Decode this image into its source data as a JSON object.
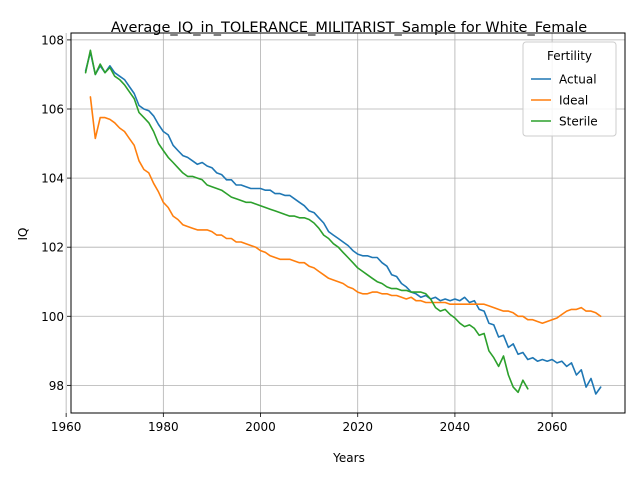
{
  "chart_data": {
    "type": "line",
    "title": "Average_IQ_in_TOLERANCE_MILITARIST_Sample for White_Female",
    "xlabel": "Years",
    "ylabel": "IQ",
    "xlim": [
      1961,
      2075
    ],
    "ylim": [
      97.2,
      108.2
    ],
    "xticks": [
      1960,
      1980,
      2000,
      2020,
      2040,
      2060
    ],
    "yticks": [
      98,
      100,
      102,
      104,
      106,
      108
    ],
    "grid": true,
    "legend": {
      "title": "Fertility",
      "placement": "top-right"
    },
    "series": [
      {
        "name": "Actual",
        "color": "#1f77b4",
        "x": [
          1964,
          1965,
          1966,
          1967,
          1968,
          1969,
          1970,
          1971,
          1972,
          1973,
          1974,
          1975,
          1976,
          1977,
          1978,
          1979,
          1980,
          1981,
          1982,
          1983,
          1984,
          1985,
          1986,
          1987,
          1988,
          1989,
          1990,
          1991,
          1992,
          1993,
          1994,
          1995,
          1996,
          1997,
          1998,
          1999,
          2000,
          2001,
          2002,
          2003,
          2004,
          2005,
          2006,
          2007,
          2008,
          2009,
          2010,
          2011,
          2012,
          2013,
          2014,
          2015,
          2016,
          2017,
          2018,
          2019,
          2020,
          2021,
          2022,
          2023,
          2024,
          2025,
          2026,
          2027,
          2028,
          2029,
          2030,
          2031,
          2032,
          2033,
          2034,
          2035,
          2036,
          2037,
          2038,
          2039,
          2040,
          2041,
          2042,
          2043,
          2044,
          2045,
          2046,
          2047,
          2048,
          2049,
          2050,
          2051,
          2052,
          2053,
          2054,
          2055,
          2056,
          2057,
          2058,
          2059,
          2060,
          2061,
          2062,
          2063,
          2064,
          2065,
          2066,
          2067,
          2068,
          2069,
          2070
        ],
        "y": [
          107.1,
          107.65,
          107.0,
          107.25,
          107.05,
          107.25,
          107.05,
          106.95,
          106.85,
          106.65,
          106.45,
          106.1,
          106.0,
          105.95,
          105.8,
          105.55,
          105.35,
          105.25,
          104.95,
          104.8,
          104.65,
          104.6,
          104.5,
          104.4,
          104.45,
          104.35,
          104.3,
          104.15,
          104.1,
          103.95,
          103.95,
          103.8,
          103.8,
          103.75,
          103.7,
          103.7,
          103.7,
          103.65,
          103.65,
          103.55,
          103.55,
          103.5,
          103.5,
          103.4,
          103.3,
          103.2,
          103.05,
          103.0,
          102.85,
          102.7,
          102.45,
          102.35,
          102.25,
          102.15,
          102.05,
          101.9,
          101.8,
          101.75,
          101.75,
          101.7,
          101.7,
          101.55,
          101.45,
          101.2,
          101.15,
          100.95,
          100.85,
          100.7,
          100.65,
          100.55,
          100.6,
          100.5,
          100.55,
          100.45,
          100.5,
          100.45,
          100.5,
          100.45,
          100.55,
          100.4,
          100.45,
          100.2,
          100.15,
          99.8,
          99.75,
          99.4,
          99.45,
          99.1,
          99.2,
          98.9,
          98.95,
          98.75,
          98.8,
          98.7,
          98.75,
          98.7,
          98.75,
          98.65,
          98.7,
          98.55,
          98.65,
          98.3,
          98.45,
          97.95,
          98.2,
          97.75,
          97.95
        ]
      },
      {
        "name": "Ideal",
        "color": "#ff7f0e",
        "x": [
          1965,
          1966,
          1967,
          1968,
          1969,
          1970,
          1971,
          1972,
          1973,
          1974,
          1975,
          1976,
          1977,
          1978,
          1979,
          1980,
          1981,
          1982,
          1983,
          1984,
          1985,
          1986,
          1987,
          1988,
          1989,
          1990,
          1991,
          1992,
          1993,
          1994,
          1995,
          1996,
          1997,
          1998,
          1999,
          2000,
          2001,
          2002,
          2003,
          2004,
          2005,
          2006,
          2007,
          2008,
          2009,
          2010,
          2011,
          2012,
          2013,
          2014,
          2015,
          2016,
          2017,
          2018,
          2019,
          2020,
          2021,
          2022,
          2023,
          2024,
          2025,
          2026,
          2027,
          2028,
          2029,
          2030,
          2031,
          2032,
          2033,
          2034,
          2035,
          2036,
          2037,
          2038,
          2039,
          2040,
          2041,
          2042,
          2043,
          2044,
          2045,
          2046,
          2047,
          2048,
          2049,
          2050,
          2051,
          2052,
          2053,
          2054,
          2055,
          2056,
          2057,
          2058,
          2059,
          2060,
          2061,
          2062,
          2063,
          2064,
          2065,
          2066,
          2067,
          2068,
          2069,
          2070
        ],
        "y": [
          106.35,
          105.15,
          105.75,
          105.75,
          105.7,
          105.6,
          105.45,
          105.35,
          105.15,
          104.95,
          104.5,
          104.25,
          104.15,
          103.85,
          103.6,
          103.3,
          103.15,
          102.9,
          102.8,
          102.65,
          102.6,
          102.55,
          102.5,
          102.5,
          102.5,
          102.45,
          102.35,
          102.35,
          102.25,
          102.25,
          102.15,
          102.15,
          102.1,
          102.05,
          102.0,
          101.9,
          101.85,
          101.75,
          101.7,
          101.65,
          101.65,
          101.65,
          101.6,
          101.55,
          101.55,
          101.45,
          101.4,
          101.3,
          101.2,
          101.1,
          101.05,
          101.0,
          100.95,
          100.85,
          100.8,
          100.7,
          100.65,
          100.65,
          100.7,
          100.7,
          100.65,
          100.65,
          100.6,
          100.6,
          100.55,
          100.5,
          100.55,
          100.45,
          100.45,
          100.4,
          100.4,
          100.4,
          100.4,
          100.4,
          100.35,
          100.35,
          100.35,
          100.35,
          100.35,
          100.35,
          100.35,
          100.35,
          100.3,
          100.25,
          100.2,
          100.15,
          100.15,
          100.1,
          100.0,
          100.0,
          99.9,
          99.9,
          99.85,
          99.8,
          99.85,
          99.9,
          99.95,
          100.05,
          100.15,
          100.2,
          100.2,
          100.25,
          100.15,
          100.15,
          100.1,
          100.0
        ]
      },
      {
        "name": "Sterile",
        "color": "#2ca02c",
        "x": [
          1964,
          1965,
          1966,
          1967,
          1968,
          1969,
          1970,
          1971,
          1972,
          1973,
          1974,
          1975,
          1976,
          1977,
          1978,
          1979,
          1980,
          1981,
          1982,
          1983,
          1984,
          1985,
          1986,
          1987,
          1988,
          1989,
          1990,
          1991,
          1992,
          1993,
          1994,
          1995,
          1996,
          1997,
          1998,
          1999,
          2000,
          2001,
          2002,
          2003,
          2004,
          2005,
          2006,
          2007,
          2008,
          2009,
          2010,
          2011,
          2012,
          2013,
          2014,
          2015,
          2016,
          2017,
          2018,
          2019,
          2020,
          2021,
          2022,
          2023,
          2024,
          2025,
          2026,
          2027,
          2028,
          2029,
          2030,
          2031,
          2032,
          2033,
          2034,
          2035,
          2036,
          2037,
          2038,
          2039,
          2040,
          2041,
          2042,
          2043,
          2044,
          2045,
          2046,
          2047,
          2048,
          2049,
          2050,
          2051,
          2052,
          2053,
          2054,
          2055
        ],
        "y": [
          107.05,
          107.7,
          107.0,
          107.3,
          107.05,
          107.2,
          106.95,
          106.85,
          106.7,
          106.5,
          106.3,
          105.9,
          105.75,
          105.6,
          105.35,
          105.0,
          104.8,
          104.6,
          104.45,
          104.3,
          104.15,
          104.05,
          104.05,
          104.0,
          103.95,
          103.8,
          103.75,
          103.7,
          103.65,
          103.55,
          103.45,
          103.4,
          103.35,
          103.3,
          103.3,
          103.25,
          103.2,
          103.15,
          103.1,
          103.05,
          103.0,
          102.95,
          102.9,
          102.9,
          102.85,
          102.85,
          102.8,
          102.7,
          102.55,
          102.35,
          102.25,
          102.1,
          102.0,
          101.85,
          101.7,
          101.55,
          101.4,
          101.3,
          101.2,
          101.1,
          101.0,
          100.95,
          100.85,
          100.8,
          100.8,
          100.75,
          100.75,
          100.7,
          100.7,
          100.7,
          100.65,
          100.5,
          100.25,
          100.15,
          100.2,
          100.05,
          99.95,
          99.8,
          99.7,
          99.75,
          99.65,
          99.45,
          99.5,
          99.0,
          98.8,
          98.55,
          98.85,
          98.3,
          97.95,
          97.8,
          98.15,
          97.9
        ]
      }
    ]
  }
}
